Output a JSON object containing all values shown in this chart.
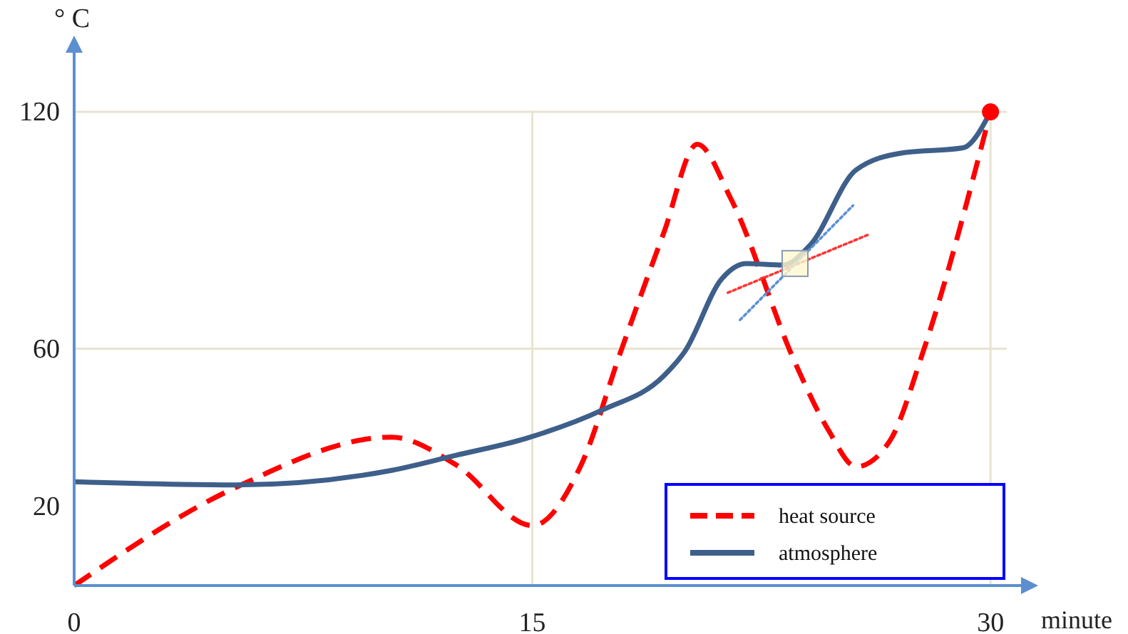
{
  "chart_data": {
    "type": "line",
    "xlabel": "minute",
    "ylabel": "° C",
    "xlim": [
      0,
      31
    ],
    "ylim": [
      0,
      135
    ],
    "xticks": [
      0,
      15,
      30
    ],
    "yticks": [
      20,
      60,
      120
    ],
    "grid": "x",
    "legend": "bottom right",
    "ref_lines": [
      {
        "axis": "y",
        "value": 60,
        "color": "#e8e4d0"
      },
      {
        "axis": "y",
        "value": 120,
        "color": "#e8e4d0"
      }
    ],
    "series": [
      {
        "name": "heat source",
        "color": "#ff0000",
        "line_style": "dashed",
        "x": [
          0,
          5.3,
          10.4,
          12.5,
          15,
          16.6,
          17.9,
          19.3,
          20.4,
          21.5,
          23.6,
          24.7,
          25.6,
          26.7,
          27.8,
          30
        ],
        "values": [
          0,
          24.9,
          37.6,
          30.6,
          15.2,
          30.6,
          59.4,
          89.3,
          111.8,
          98,
          56.5,
          39.3,
          30.1,
          36.6,
          59.4,
          120
        ]
      },
      {
        "name": "atmosphere",
        "color": "#3e5f8a",
        "line_style": "solid",
        "x": [
          0,
          5.3,
          10.4,
          12.5,
          14.8,
          17.3,
          19.3,
          20,
          21.2,
          22,
          23.2,
          24.1,
          25.6,
          27.1,
          29.1,
          30
        ],
        "values": [
          26.3,
          25.5,
          29.2,
          33,
          37.3,
          44.5,
          53.1,
          59.4,
          77.7,
          81.6,
          81.2,
          86.3,
          105.3,
          109.6,
          110.9,
          120
        ]
      },
      {
        "type": "line",
        "color": "#ff3333",
        "line_style": "dotted",
        "x": [
          21.4,
          26
        ],
        "values": [
          74.2,
          88.9
        ]
      },
      {
        "type": "line",
        "color": "#5b8fd6",
        "line_style": "dotted",
        "x": [
          21.8,
          25.5
        ],
        "values": [
          67.3,
          96.3
        ]
      },
      {
        "type": "scatter",
        "color": "#fff8d0",
        "marker": "square",
        "x": [
          23.6
        ],
        "values": [
          81.6
        ]
      },
      {
        "type": "scatter",
        "color": "#ff0000",
        "marker": "circle",
        "x": [
          30
        ],
        "values": [
          120
        ]
      }
    ]
  }
}
